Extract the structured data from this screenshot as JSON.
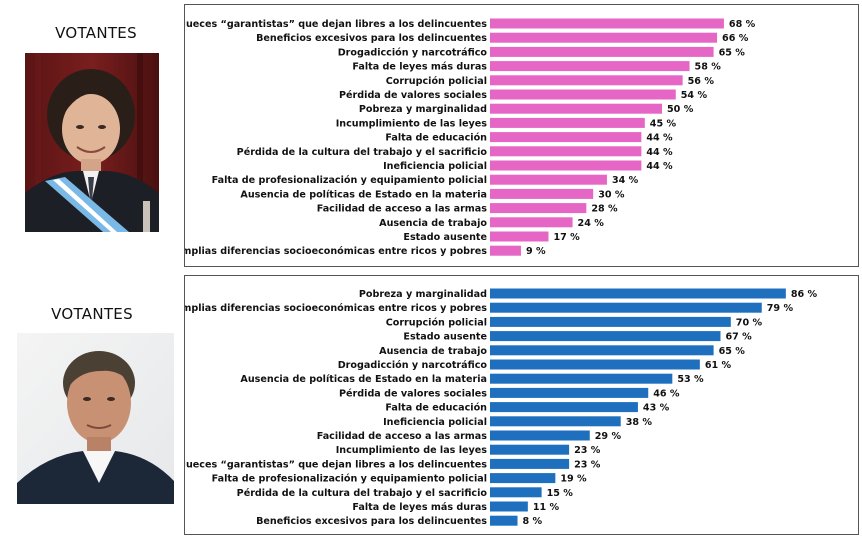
{
  "labels": {
    "top": "VOTANTES",
    "bottom": "VOTANTES"
  },
  "chart_data": [
    {
      "type": "bar",
      "orientation": "horizontal",
      "color": "#e566c4",
      "value_suffix": " %",
      "categories": [
        "Jueces “garantistas” que dejan libres a los delincuentes",
        "Beneficios excesivos para los delincuentes",
        "Drogadicción y narcotráfico",
        "Falta de leyes más duras",
        "Corrupción policial",
        "Pérdida de valores sociales",
        "Pobreza y marginalidad",
        "Incumplimiento de las leyes",
        "Falta de educación",
        "Pérdida de la cultura del trabajo y el sacrificio",
        "Ineficiencia policial",
        "Falta de profesionalización y equipamiento policial",
        "Ausencia de políticas de Estado en la materia",
        "Facilidad de acceso a las armas",
        "Ausencia de trabajo",
        "Estado ausente",
        "Amplias diferencias socioeconómicas entre ricos y pobres"
      ],
      "values": [
        68,
        66,
        65,
        58,
        56,
        54,
        50,
        45,
        44,
        44,
        44,
        34,
        30,
        28,
        24,
        17,
        9
      ],
      "value_labels": [
        "68 %",
        "66 %",
        "65 %",
        "58 %",
        "56 %",
        "54 %",
        "50 %",
        "45 %",
        "44 %",
        "44 %",
        "44 %",
        "34 %",
        "30 %",
        "28 %",
        "24 %",
        "17 %",
        "9 %"
      ]
    },
    {
      "type": "bar",
      "orientation": "horizontal",
      "color": "#1f6fbf",
      "value_suffix": " %",
      "categories": [
        "Pobreza y marginalidad",
        "Amplias diferencias socioeconómicas entre ricos y pobres",
        "Corrupción policial",
        "Estado ausente",
        "Ausencia de trabajo",
        "Drogadicción y narcotráfico",
        "Ausencia de políticas de Estado en la materia",
        "Pérdida de valores sociales",
        "Falta de educación",
        "Ineficiencia policial",
        "Facilidad de acceso a las armas",
        "Incumplimiento de las leyes",
        "Jueces “garantistas” que dejan libres a los delincuentes",
        "Falta de profesionalización y equipamiento policial",
        "Pérdida de la cultura del trabajo y el sacrificio",
        "Falta de leyes más duras",
        "Beneficios excesivos para los delincuentes"
      ],
      "values": [
        86,
        79,
        70,
        67,
        65,
        61,
        53,
        46,
        43,
        38,
        29,
        23,
        23,
        19,
        15,
        11,
        8
      ],
      "value_labels": [
        "86 %",
        "79 %",
        "70 %",
        "67 %",
        "65 %",
        "61 %",
        "53 %",
        "46 %",
        "43 %",
        "38 %",
        "29 %",
        "23 %",
        "23 %",
        "19 %",
        "15 %",
        "11 %",
        "8 %"
      ]
    }
  ]
}
